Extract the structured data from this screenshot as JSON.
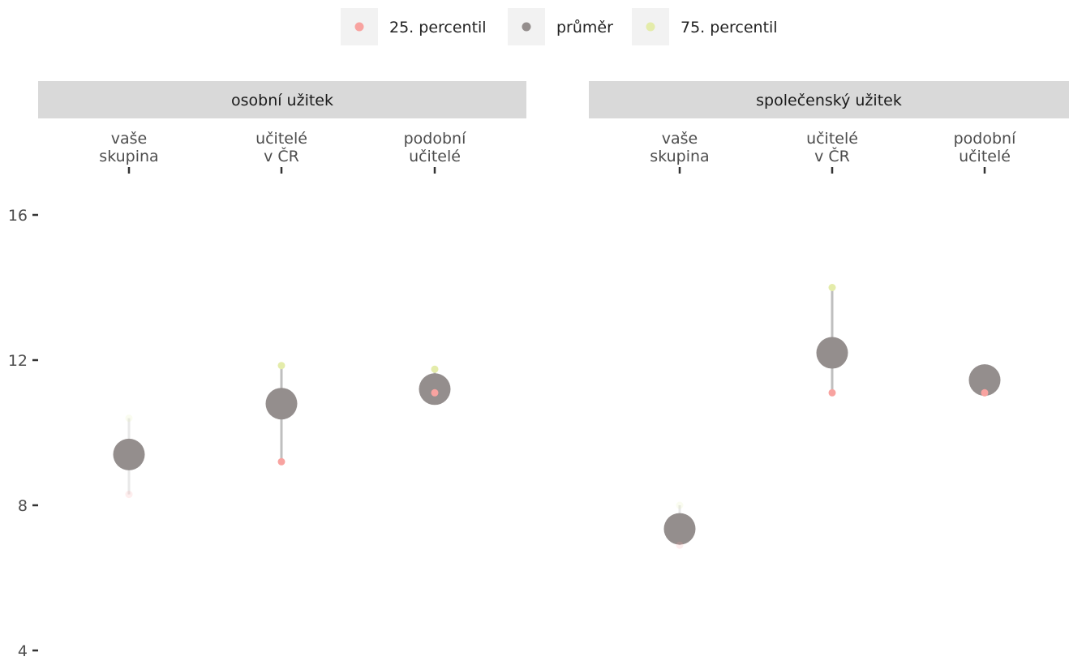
{
  "chart_data": {
    "type": "scatter",
    "legend": {
      "position": "top",
      "items": [
        {
          "key": "p25",
          "label": "25. percentil",
          "color": "#f8a3a0"
        },
        {
          "key": "mean",
          "label": "průměr",
          "color": "#948e8d"
        },
        {
          "key": "p75",
          "label": "75. percentil",
          "color": "#e4ecaa"
        }
      ]
    },
    "categories": [
      [
        "vaše",
        "skupina"
      ],
      [
        "učitelé",
        "v ČR"
      ],
      [
        "podobní",
        "učitelé"
      ]
    ],
    "y_axis": {
      "ylim": [
        4,
        16
      ],
      "ticks": [
        4,
        8,
        12,
        16
      ]
    },
    "grid": false,
    "panels": [
      {
        "title": "osobní užitek",
        "points": [
          {
            "p25": 8.3,
            "mean": 9.4,
            "p75": 10.4,
            "faded": true
          },
          {
            "p25": 9.2,
            "mean": 10.8,
            "p75": 11.85,
            "faded": false
          },
          {
            "p25": 11.1,
            "mean": 11.2,
            "p75": 11.75,
            "faded": false
          }
        ]
      },
      {
        "title": "společenský užitek",
        "points": [
          {
            "p25": 6.9,
            "mean": 7.35,
            "p75": 8.0,
            "faded": true
          },
          {
            "p25": 11.1,
            "mean": 12.2,
            "p75": 14.0,
            "faded": false
          },
          {
            "p25": 11.1,
            "mean": 11.45,
            "p75": 11.1,
            "faded": false
          }
        ]
      }
    ]
  }
}
